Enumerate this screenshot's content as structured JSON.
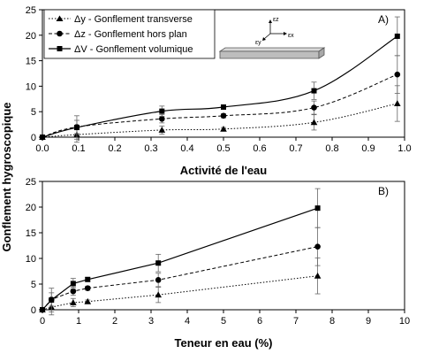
{
  "ylabel": "Gonflement hygroscopique",
  "legend": [
    "Δy - Gonflement transverse",
    "Δz - Gonflement hors plan",
    "ΔV - Gonflement volumique"
  ],
  "strain_labels": {
    "z": "εz",
    "x": "εx",
    "y": "εy"
  },
  "chart_data": [
    {
      "type": "line",
      "panel_label": "A)",
      "xlabel": "Activité de l'eau",
      "ylabel": "Gonflement hygroscopique",
      "xlim": [
        0,
        1.0
      ],
      "ylim": [
        0,
        25
      ],
      "xticks": [
        "0.0",
        "0.1",
        "0.2",
        "0.3",
        "0.4",
        "0.5",
        "0.6",
        "0.7",
        "0.8",
        "0.9",
        "1.0"
      ],
      "yticks": [
        "0",
        "5",
        "10",
        "15",
        "20",
        "25"
      ],
      "legend_position": "top-left",
      "grid": false,
      "x": [
        0,
        0.095,
        0.33,
        0.5,
        0.75,
        0.98
      ],
      "series": [
        {
          "name": "Δy - Gonflement transverse",
          "marker": "triangle",
          "line": "dotted",
          "values": [
            0,
            0.5,
            1.4,
            1.6,
            2.9,
            6.6
          ],
          "errors": [
            0,
            1.5,
            0.8,
            0.3,
            1.5,
            3.5
          ]
        },
        {
          "name": "Δz - Gonflement hors plan",
          "marker": "circle",
          "line": "dashed",
          "values": [
            0,
            2.0,
            3.6,
            4.2,
            5.8,
            12.3
          ],
          "errors": [
            0,
            1.3,
            0.8,
            0.4,
            1.3,
            3.7
          ]
        },
        {
          "name": "ΔV - Gonflement volumique",
          "marker": "square",
          "line": "solid",
          "values": [
            0,
            1.9,
            5.1,
            5.9,
            9.1,
            19.8
          ],
          "errors": [
            0,
            2.3,
            1.0,
            0.4,
            1.7,
            3.8
          ]
        }
      ]
    },
    {
      "type": "line",
      "panel_label": "B)",
      "xlabel": "Teneur en eau (%)",
      "ylabel": "Gonflement hygroscopique",
      "xlim": [
        0,
        10
      ],
      "ylim": [
        0,
        25
      ],
      "xticks": [
        "0",
        "1",
        "2",
        "3",
        "4",
        "5",
        "6",
        "7",
        "8",
        "9",
        "10"
      ],
      "yticks": [
        "0",
        "5",
        "10",
        "15",
        "20",
        "25"
      ],
      "legend_position": "none",
      "grid": false,
      "x": [
        0,
        0.25,
        0.85,
        1.25,
        3.2,
        7.6
      ],
      "series": [
        {
          "name": "Δy - Gonflement transverse",
          "marker": "triangle",
          "line": "dotted",
          "values": [
            0,
            0.5,
            1.4,
            1.6,
            2.9,
            6.6
          ],
          "errors": [
            0,
            1.5,
            0.8,
            0.3,
            1.5,
            3.5
          ]
        },
        {
          "name": "Δz - Gonflement hors plan",
          "marker": "circle",
          "line": "dashed",
          "values": [
            0,
            2.0,
            3.6,
            4.2,
            5.8,
            12.3
          ],
          "errors": [
            0,
            1.3,
            0.8,
            0.4,
            1.3,
            3.7
          ]
        },
        {
          "name": "ΔV - Gonflement volumique",
          "marker": "square",
          "line": "solid",
          "values": [
            0,
            1.9,
            5.1,
            5.9,
            9.1,
            19.8
          ],
          "errors": [
            0,
            2.3,
            1.0,
            0.4,
            1.7,
            3.8
          ]
        }
      ]
    }
  ]
}
